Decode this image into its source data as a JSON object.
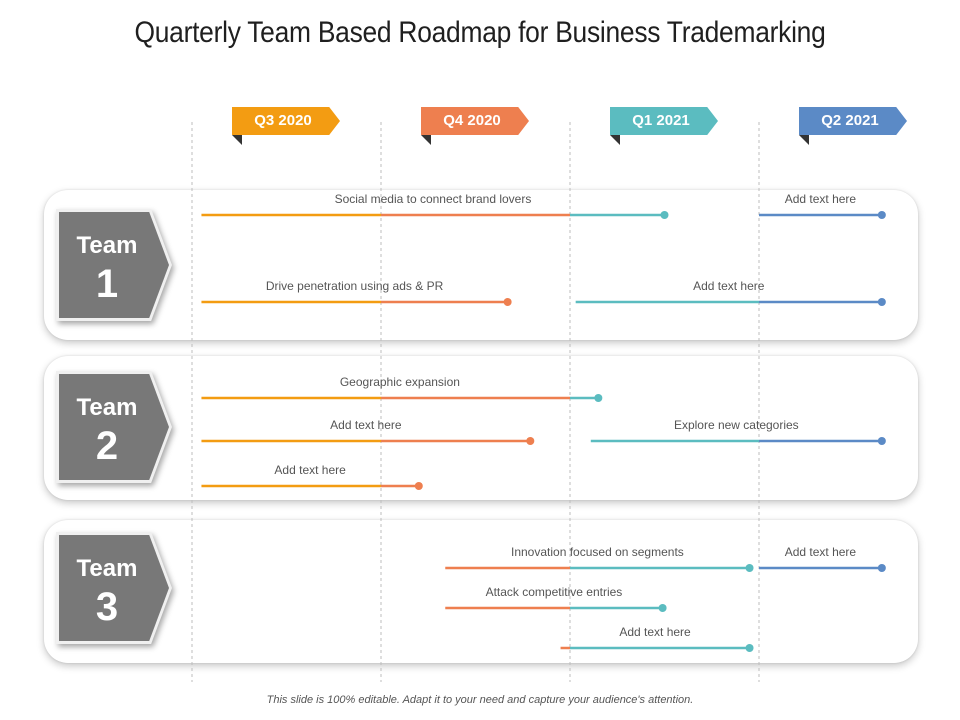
{
  "title": "Quarterly Team Based Roadmap for Business Trademarking",
  "quarters": [
    {
      "label": "Q3 2020",
      "color": "#f39c12"
    },
    {
      "label": "Q4 2020",
      "color": "#ee7f4f"
    },
    {
      "label": "Q1 2021",
      "color": "#5bbcc0"
    },
    {
      "label": "Q2 2021",
      "color": "#5b8ac6"
    }
  ],
  "teams": [
    {
      "word": "Team",
      "number": "1"
    },
    {
      "word": "Team",
      "number": "2"
    },
    {
      "word": "Team",
      "number": "3"
    }
  ],
  "tasks": [
    {
      "team": 1,
      "label": "Social media to connect brand lovers",
      "start_q": 0.05,
      "end_q": 2.5
    },
    {
      "team": 1,
      "label": "Add text here",
      "start_q": 3.0,
      "end_q": 3.65
    },
    {
      "team": 1,
      "label": "Drive penetration using ads & PR",
      "start_q": 0.05,
      "end_q": 1.67
    },
    {
      "team": 1,
      "label": "Add text here",
      "start_q": 2.03,
      "end_q": 3.65
    },
    {
      "team": 2,
      "label": "Geographic expansion",
      "start_q": 0.05,
      "end_q": 2.15
    },
    {
      "team": 2,
      "label": "Add text here",
      "start_q": 0.05,
      "end_q": 1.79
    },
    {
      "team": 2,
      "label": "Explore new categories",
      "start_q": 2.11,
      "end_q": 3.65
    },
    {
      "team": 2,
      "label": "Add text here",
      "start_q": 0.05,
      "end_q": 1.2
    },
    {
      "team": 3,
      "label": "Innovation focused on segments",
      "start_q": 1.34,
      "end_q": 2.95
    },
    {
      "team": 3,
      "label": "Add text here",
      "start_q": 3.0,
      "end_q": 3.65
    },
    {
      "team": 3,
      "label": "Attack competitive entries",
      "start_q": 1.34,
      "end_q": 2.49
    },
    {
      "team": 3,
      "label": "Add text here",
      "start_q": 1.95,
      "end_q": 2.95
    }
  ],
  "footer": "This slide is 100% editable. Adapt it to your need and capture your audience's attention."
}
